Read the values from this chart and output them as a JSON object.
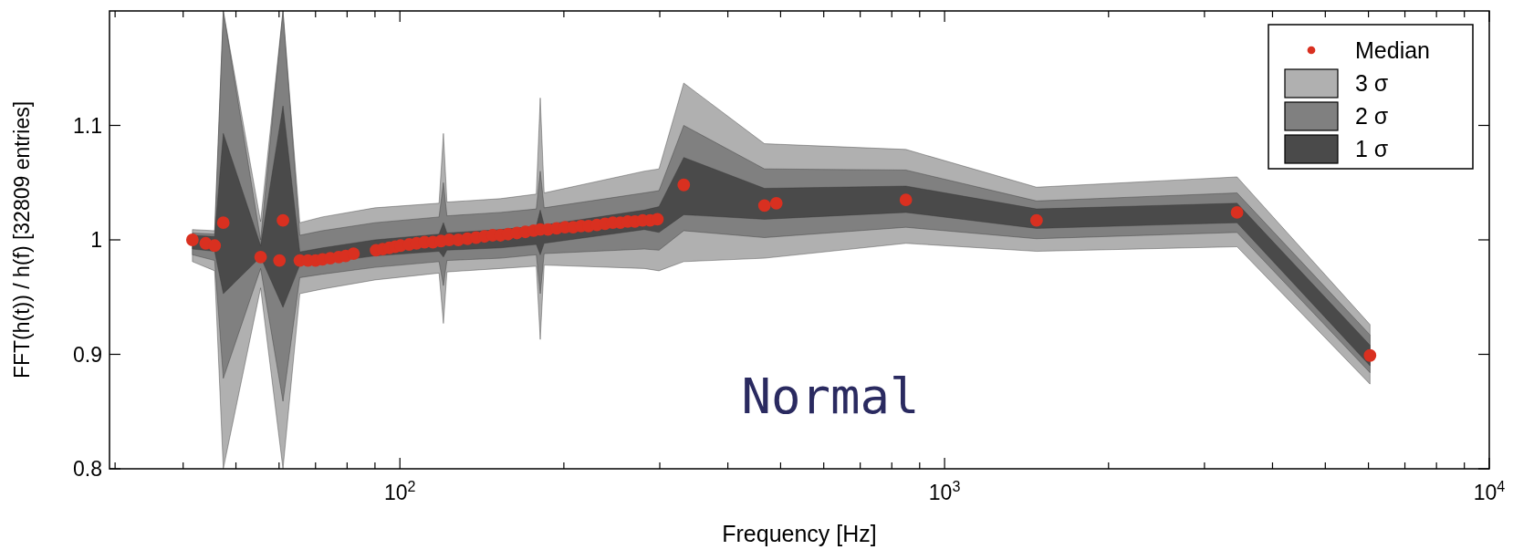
{
  "chart_data": {
    "type": "scatter",
    "xlabel": "Frequency [Hz]",
    "ylabel": "FFT(h(t)) / h(f) [32809 entries]",
    "log": "x",
    "xlim": [
      29.3,
      10000
    ],
    "ylim": [
      0.8,
      1.2
    ],
    "xticks": [
      {
        "value": 30,
        "label": null
      },
      {
        "value": 40,
        "label": null
      },
      {
        "value": 50,
        "label": null
      },
      {
        "value": 60,
        "label": null
      },
      {
        "value": 70,
        "label": null
      },
      {
        "value": 80,
        "label": null
      },
      {
        "value": 90,
        "label": null
      },
      {
        "value": 100,
        "label": "10$^{2}$"
      },
      {
        "value": 200,
        "label": null
      },
      {
        "value": 300,
        "label": null
      },
      {
        "value": 400,
        "label": null
      },
      {
        "value": 500,
        "label": null
      },
      {
        "value": 600,
        "label": null
      },
      {
        "value": 700,
        "label": null
      },
      {
        "value": 800,
        "label": null
      },
      {
        "value": 900,
        "label": null
      },
      {
        "value": 1000,
        "label": "10$^{3}$"
      },
      {
        "value": 2000,
        "label": null
      },
      {
        "value": 3000,
        "label": null
      },
      {
        "value": 4000,
        "label": null
      },
      {
        "value": 5000,
        "label": null
      },
      {
        "value": 6000,
        "label": null
      },
      {
        "value": 7000,
        "label": null
      },
      {
        "value": 8000,
        "label": null
      },
      {
        "value": 9000,
        "label": null
      },
      {
        "value": 10000,
        "label": "10$^{4}$"
      }
    ],
    "yticks": [
      0.8,
      0.9,
      1,
      1.1
    ],
    "grid": false,
    "legend": "top right",
    "annotations": [
      "Normal"
    ],
    "series": [
      {
        "name": "Median",
        "marker": "circle",
        "color": "#d93020",
        "x": [
          41.6,
          44.0,
          45.7,
          47.4,
          55.5,
          60.1,
          61.0,
          65.5,
          67.8,
          70,
          72.1,
          74.5,
          77.2,
          79.5,
          82.2,
          90.4,
          93,
          95.6,
          98,
          100.3,
          104,
          107.3,
          111,
          115,
          119,
          123.2,
          128,
          133,
          138,
          143,
          148,
          153,
          158,
          164,
          170,
          176,
          181,
          187,
          194,
          201,
          208,
          215,
          222,
          230,
          238,
          246,
          254,
          262,
          270,
          279,
          288,
          297,
          332,
          467,
          491,
          849,
          1475,
          3443,
          6040
        ],
        "values": [
          1.0,
          0.997,
          0.995,
          1.015,
          0.985,
          0.982,
          1.017,
          0.982,
          0.982,
          0.982,
          0.983,
          0.984,
          0.985,
          0.986,
          0.988,
          0.991,
          0.992,
          0.993,
          0.994,
          0.995,
          0.996,
          0.997,
          0.998,
          0.998,
          0.999,
          1.0,
          1.0,
          1.001,
          1.002,
          1.003,
          1.004,
          1.004,
          1.005,
          1.006,
          1.007,
          1.008,
          1.009,
          1.009,
          1.01,
          1.011,
          1.011,
          1.012,
          1.012,
          1.013,
          1.014,
          1.015,
          1.015,
          1.016,
          1.016,
          1.017,
          1.017,
          1.018,
          1.048,
          1.03,
          1.032,
          1.035,
          1.017,
          1.024,
          0.899
        ]
      },
      {
        "name": "3 σ",
        "type": "line",
        "color": "#b0b0b0",
        "x": [
          41.6,
          45.7,
          47.4,
          55.5,
          61,
          65.5,
          72,
          90,
          118,
          120.2,
          122,
          153,
          178,
          181,
          184,
          281,
          299,
          332,
          467,
          849,
          1475,
          3443,
          6040
        ],
        "values": [
          null,
          null,
          null,
          null,
          null,
          null,
          null,
          null,
          null,
          null,
          null,
          null,
          null,
          null,
          null,
          null,
          null,
          null,
          null,
          null,
          null,
          null,
          null
        ],
        "upper": [
          1.009,
          1.008,
          1.2,
          1.016,
          1.2,
          1.015,
          1.02,
          1.028,
          1.032,
          1.093,
          1.033,
          1.036,
          1.04,
          1.124,
          1.041,
          1.06,
          1.062,
          1.137,
          1.084,
          1.079,
          1.046,
          1.055,
          0.926
        ],
        "lower": [
          0.981,
          0.973,
          0.8,
          0.958,
          0.8,
          0.953,
          0.957,
          0.965,
          0.971,
          0.927,
          0.972,
          0.975,
          0.977,
          0.913,
          0.978,
          0.975,
          0.973,
          0.981,
          0.984,
          0.997,
          0.99,
          0.994,
          0.874
        ]
      },
      {
        "name": "2 σ",
        "type": "line",
        "color": "#808080",
        "x": [
          41.6,
          45.7,
          47.4,
          55.5,
          61,
          65.5,
          72,
          90,
          118,
          120.2,
          122,
          153,
          178,
          181,
          184,
          281,
          299,
          332,
          467,
          849,
          1475,
          3443,
          6040
        ],
        "values": [
          null,
          null,
          null,
          null,
          null,
          null,
          null,
          null,
          null,
          null,
          null,
          null,
          null,
          null,
          null,
          null,
          null,
          null,
          null,
          null,
          null,
          null,
          null
        ],
        "upper": [
          1.006,
          1.005,
          1.2,
          1.0,
          1.2,
          1.004,
          1.008,
          1.015,
          1.02,
          1.05,
          1.021,
          1.024,
          1.027,
          1.06,
          1.028,
          1.041,
          1.043,
          1.1,
          1.062,
          1.061,
          1.034,
          1.041,
          0.917
        ],
        "lower": [
          0.987,
          0.982,
          0.879,
          0.975,
          0.859,
          0.967,
          0.97,
          0.976,
          0.981,
          0.96,
          0.982,
          0.984,
          0.987,
          0.953,
          0.988,
          0.992,
          0.991,
          1.008,
          1.002,
          1.011,
          1.001,
          1.0065,
          0.884
        ]
      },
      {
        "name": "1 σ",
        "type": "line",
        "color": "#4a4a4a",
        "x": [
          41.6,
          45.7,
          47.4,
          55.5,
          61,
          65.5,
          72,
          90,
          118,
          120.2,
          122,
          153,
          178,
          181,
          184,
          281,
          299,
          332,
          467,
          849,
          1475,
          3443,
          6040
        ],
        "values": [
          null,
          null,
          null,
          null,
          null,
          null,
          null,
          null,
          null,
          null,
          null,
          null,
          null,
          null,
          null,
          null,
          null,
          null,
          null,
          null,
          null,
          null,
          null
        ],
        "upper": [
          1.004,
          1.003,
          1.093,
          0.995,
          1.117,
          0.9895,
          0.993,
          1.0,
          1.005,
          1.015,
          1.006,
          1.009,
          1.012,
          1.026,
          1.013,
          1.026,
          1.029,
          1.072,
          1.045,
          1.047,
          1.027,
          1.032,
          0.908
        ],
        "lower": [
          0.992,
          0.99,
          0.953,
          0.985,
          0.941,
          0.978,
          0.98,
          0.986,
          0.99,
          0.985,
          0.991,
          0.993,
          0.996,
          0.987,
          0.997,
          1.009,
          1.0065,
          1.022,
          1.018,
          1.024,
          1.01,
          1.015,
          0.89
        ]
      }
    ]
  }
}
